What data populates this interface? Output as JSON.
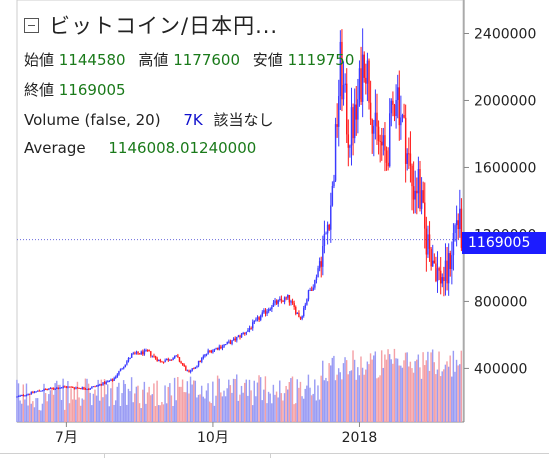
{
  "title": "ビットコイン/日本円...",
  "ohlc": {
    "open_label": "始値",
    "open": "1144580",
    "high_label": "高値",
    "high": "1177600",
    "low_label": "安値",
    "low": "1119750",
    "close_label": "終値",
    "close": "1169005"
  },
  "volume": {
    "label": "Volume (false, 20)",
    "value": "7K",
    "note": "該当なし"
  },
  "average": {
    "label": "Average",
    "value": "1146008.01240000"
  },
  "last_price": "1169005",
  "colors": {
    "up": "#3a3aff",
    "down": "#ff1a1a",
    "vol_up": "#9a9cf4",
    "vol_down": "#f4a0a6",
    "price_tag": "#1c1cff",
    "last_line": "#6a6add"
  },
  "chart_data": {
    "type": "candlestick",
    "y_ticks": [
      400000,
      800000,
      1200000,
      1600000,
      2000000,
      2400000
    ],
    "y_tick_labels": [
      "400000",
      "800000",
      "1200000",
      "1600000",
      "2000000",
      "2400000"
    ],
    "ylim": [
      80000,
      2600000
    ],
    "x_ticks": [
      {
        "label": "7月",
        "day": 31
      },
      {
        "label": "10月",
        "day": 123
      },
      {
        "label": "2018",
        "day": 215
      }
    ],
    "days": 280,
    "last_price": 1169005,
    "anchors": [
      [
        0,
        230000
      ],
      [
        15,
        270000
      ],
      [
        30,
        290000
      ],
      [
        45,
        280000
      ],
      [
        60,
        330000
      ],
      [
        72,
        480000
      ],
      [
        82,
        500000
      ],
      [
        90,
        440000
      ],
      [
        100,
        470000
      ],
      [
        108,
        370000
      ],
      [
        120,
        500000
      ],
      [
        135,
        560000
      ],
      [
        145,
        630000
      ],
      [
        160,
        780000
      ],
      [
        170,
        820000
      ],
      [
        178,
        700000
      ],
      [
        183,
        850000
      ],
      [
        187,
        920000
      ],
      [
        194,
        1200000
      ],
      [
        198,
        1450000
      ],
      [
        201,
        1900000
      ],
      [
        203,
        2200000
      ],
      [
        208,
        1800000
      ],
      [
        213,
        1900000
      ],
      [
        218,
        2300000
      ],
      [
        225,
        1800000
      ],
      [
        232,
        1650000
      ],
      [
        238,
        2100000
      ],
      [
        244,
        1750000
      ],
      [
        248,
        1500000
      ],
      [
        252,
        1500000
      ],
      [
        256,
        1200000
      ],
      [
        260,
        1100000
      ],
      [
        265,
        950000
      ],
      [
        270,
        950000
      ],
      [
        276,
        1300000
      ],
      [
        280,
        1169005
      ]
    ]
  }
}
